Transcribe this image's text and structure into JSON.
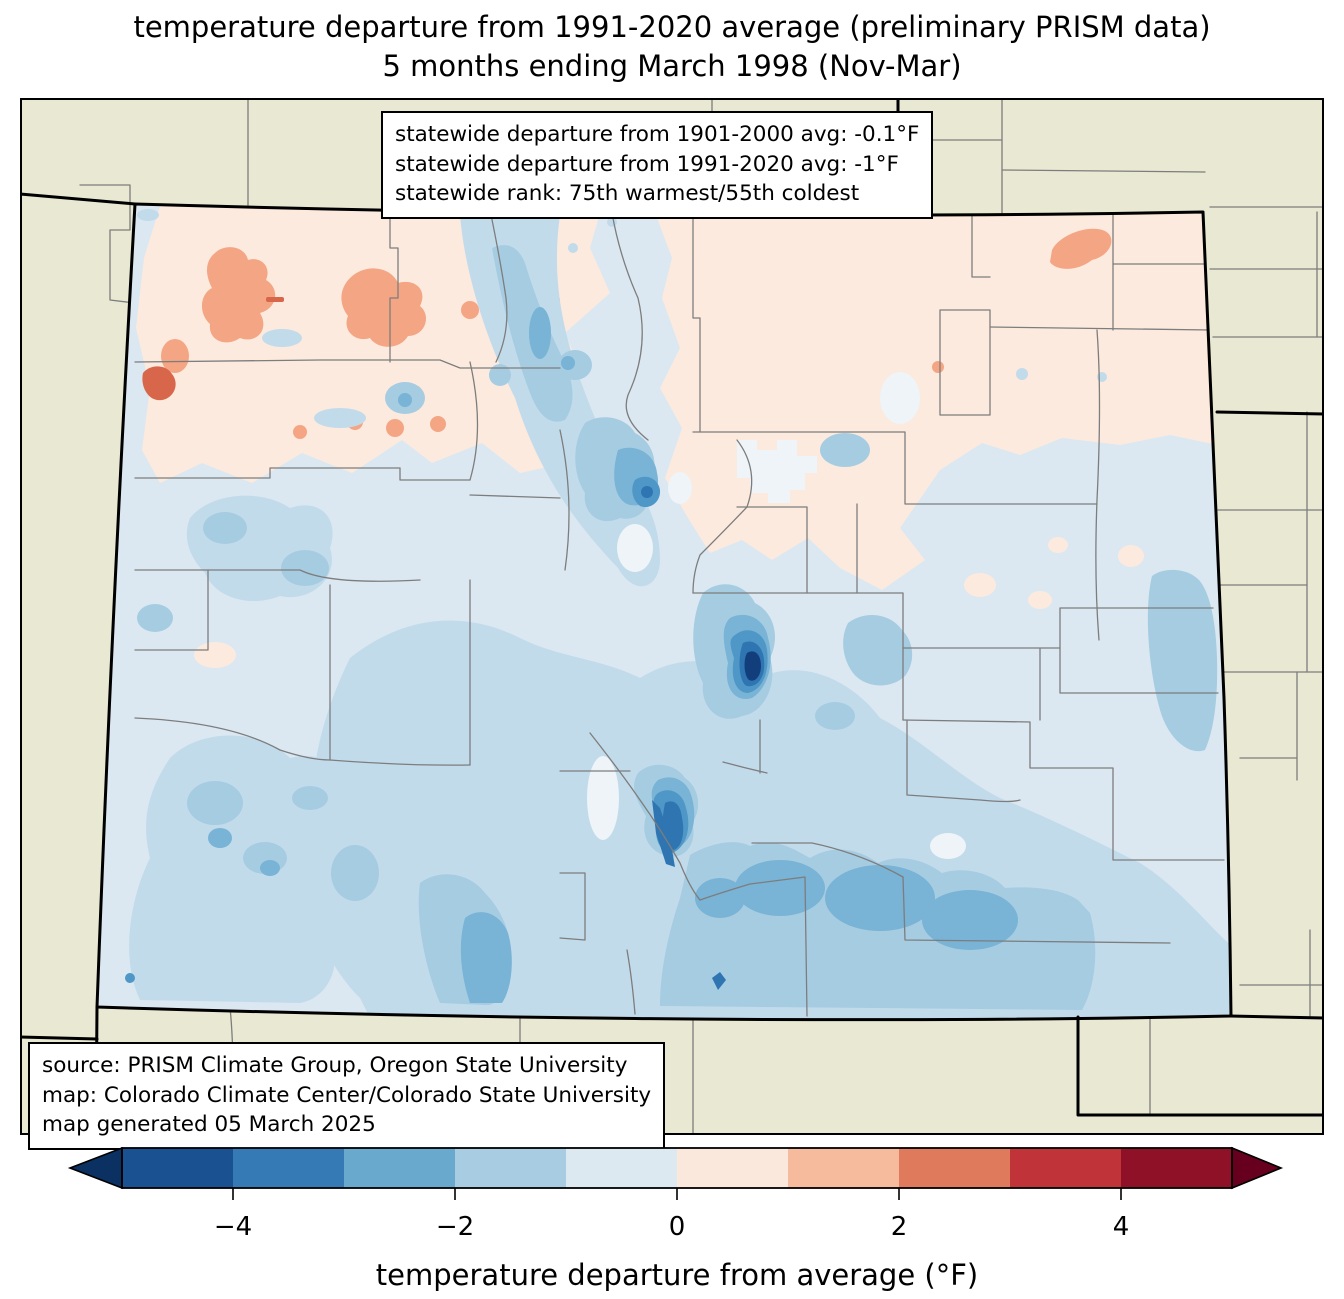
{
  "title": {
    "line1": "temperature departure from 1991-2020 average (preliminary PRISM data)",
    "line2": "5 months ending March 1998 (Nov-Mar)"
  },
  "stats_box": {
    "lines": [
      "statewide departure from 1901-2000 avg: -0.1°F",
      "statewide departure from 1991-2020 avg: -1°F",
      "statewide rank: 75th warmest/55th coldest"
    ]
  },
  "source_box": {
    "lines": [
      "source: PRISM Climate Group, Oregon State University",
      "map: Colorado Climate Center/Colorado State University",
      "map generated 05 March 2025"
    ]
  },
  "colorbar": {
    "label": "temperature departure from average (°F)",
    "tick_labels": [
      "−4",
      "−2",
      "0",
      "2",
      "4"
    ],
    "range": [
      -5,
      5
    ],
    "segment_colors": [
      "#1a5191",
      "#3579b5",
      "#6aa9ce",
      "#a8cde3",
      "#dde9f1",
      "#fbe8dc",
      "#f6bb9d",
      "#e07a5c",
      "#c03439",
      "#8f1127"
    ],
    "under_color": "#0a3161",
    "over_color": "#67001f"
  },
  "colors": {
    "beige": "#e9e8d3",
    "county_line": "#7d7d7d",
    "state_line": "#000000",
    "w0": "#eef4f8",
    "w1": "#dbe8f1",
    "w2": "#c2dbeb",
    "w3": "#a6cce2",
    "w4": "#79b3d5",
    "w5": "#4f97c6",
    "w6": "#2f75b2",
    "w7": "#123f7c",
    "p1": "#fceade",
    "s1": "#f4a583",
    "s2": "#d8664a"
  }
}
